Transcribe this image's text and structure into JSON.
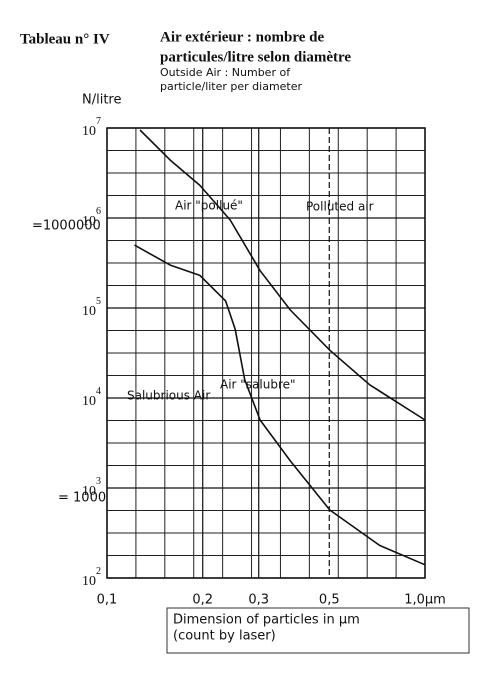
{
  "chart_data": {
    "type": "line",
    "title": "Tableau n° IV",
    "heading": [
      "Air extérieur : nombre de",
      "particules/litre selon diamètre"
    ],
    "subtitle": [
      "Outside Air : Number of",
      " particle/liter per diameter"
    ],
    "y_label": "N/litre",
    "x_label": [
      "Dimension of particles in µm",
      "(count by laser)"
    ],
    "log_x": true,
    "log_y": true,
    "grid": true,
    "xlim": [
      0.1,
      1.0
    ],
    "ylim": [
      100,
      10000000
    ],
    "xticks": [
      {
        "value": 0.1,
        "label": "0,1"
      },
      {
        "value": 0.2,
        "label": "0,2"
      },
      {
        "value": 0.3,
        "label": "0,3"
      },
      {
        "value": 0.5,
        "label": "0,5"
      },
      {
        "value": 1.0,
        "label": "1,0µm"
      }
    ],
    "yticks": [
      {
        "value": 100,
        "label": "10",
        "exp": "2"
      },
      {
        "value": 1000,
        "label": "10",
        "exp": "3"
      },
      {
        "value": 10000,
        "label": "10",
        "exp": "4"
      },
      {
        "value": 100000,
        "label": "10",
        "exp": "5"
      },
      {
        "value": 1000000,
        "label": "10",
        "exp": "6"
      },
      {
        "value": 10000000,
        "label": "10",
        "exp": "7"
      }
    ],
    "annotations": [
      "=1000000",
      "= 1000",
      "Polluted air",
      "Salubrious Air"
    ],
    "series": [
      {
        "name": "Air \"pollué\"",
        "color": "#111111",
        "x": [
          0.127,
          0.158,
          0.196,
          0.244,
          0.303,
          0.377,
          0.502,
          0.67,
          1.0
        ],
        "values": [
          9500000,
          4400000,
          2300000,
          950000,
          260000,
          95000,
          34000,
          14000,
          5700
        ]
      },
      {
        "name": "Air \"salubre\"",
        "color": "#111111",
        "x": [
          0.122,
          0.158,
          0.196,
          0.236,
          0.253,
          0.271,
          0.303,
          0.377,
          0.502,
          0.72,
          1.0
        ],
        "values": [
          500000,
          300000,
          230000,
          120000,
          58000,
          16000,
          5700,
          2000,
          570,
          230,
          140
        ]
      }
    ]
  }
}
